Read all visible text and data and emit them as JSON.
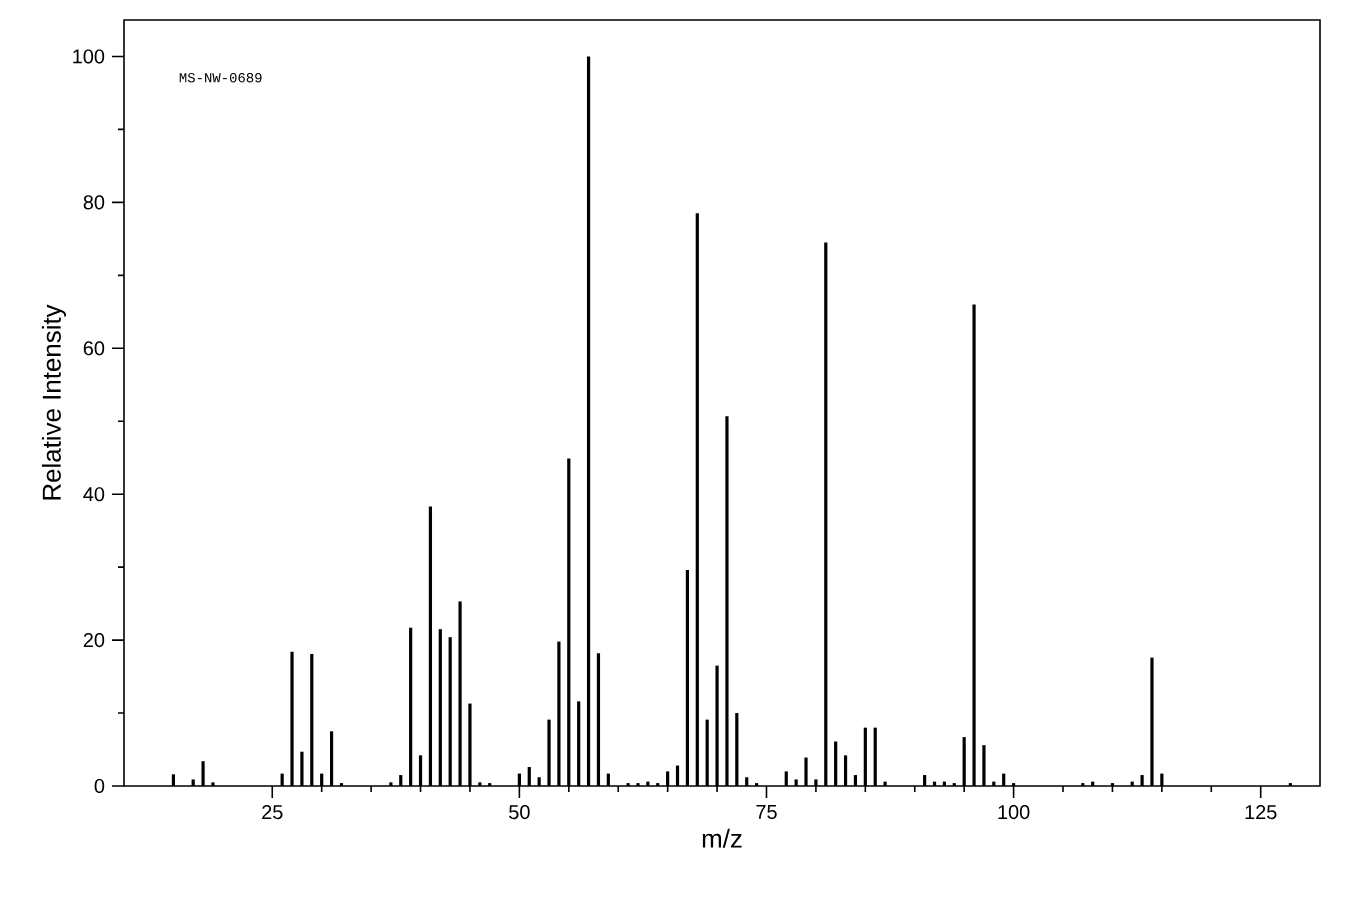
{
  "chart_data": {
    "type": "bar",
    "xlabel": "m/z",
    "ylabel": "Relative Intensity",
    "color": "#000000",
    "x": [
      15,
      17,
      18,
      19,
      26,
      27,
      28,
      29,
      30,
      31,
      32,
      37,
      38,
      39,
      40,
      41,
      42,
      43,
      44,
      45,
      46,
      47,
      50,
      51,
      52,
      53,
      54,
      55,
      56,
      57,
      58,
      59,
      61,
      62,
      63,
      64,
      65,
      66,
      67,
      68,
      69,
      70,
      71,
      72,
      73,
      74,
      77,
      78,
      79,
      80,
      81,
      82,
      83,
      84,
      85,
      86,
      87,
      91,
      92,
      93,
      94,
      95,
      96,
      97,
      98,
      99,
      100,
      107,
      108,
      110,
      112,
      113,
      114,
      115,
      128
    ],
    "values": [
      1.6,
      0.9,
      3.4,
      0.5,
      1.7,
      18.4,
      4.7,
      18.1,
      1.7,
      7.5,
      0.4,
      0.5,
      1.5,
      21.7,
      4.2,
      38.3,
      21.5,
      20.4,
      25.3,
      11.3,
      0.5,
      0.4,
      1.7,
      2.6,
      1.2,
      9.1,
      19.8,
      44.9,
      11.6,
      100,
      18.2,
      1.7,
      0.4,
      0.4,
      0.6,
      0.4,
      2.0,
      2.8,
      29.6,
      78.5,
      9.1,
      16.5,
      50.7,
      10.0,
      1.2,
      0.4,
      2.0,
      0.9,
      3.9,
      0.9,
      74.5,
      6.1,
      4.2,
      1.5,
      8.0,
      8.0,
      0.6,
      1.5,
      0.6,
      0.6,
      0.4,
      6.7,
      66.0,
      5.6,
      0.6,
      1.7,
      0.4,
      0.4,
      0.6,
      0.4,
      0.6,
      1.5,
      17.6,
      1.7,
      0.4
    ],
    "xlim": [
      10,
      131
    ],
    "ylim": [
      0,
      105
    ],
    "xticks": [
      25,
      50,
      75,
      100,
      125
    ],
    "yticks": [
      0,
      20,
      40,
      60,
      80,
      100
    ],
    "annotations": [
      "MS-NW-0689"
    ]
  }
}
